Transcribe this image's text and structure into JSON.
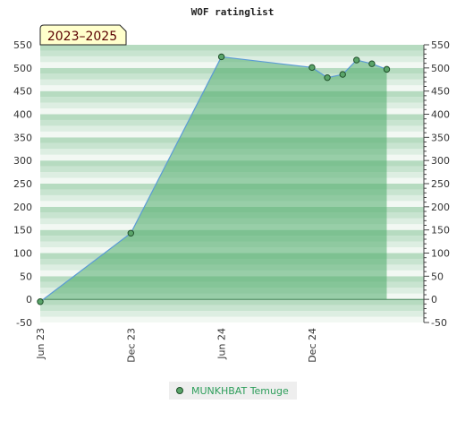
{
  "chart_data": {
    "type": "area",
    "title": "WOF ratinglist",
    "period_badge": "2023–2025",
    "xlabel": "",
    "ylabel": "",
    "ylim": [
      -50,
      550
    ],
    "y_ticks": [
      -50,
      0,
      50,
      100,
      150,
      200,
      250,
      300,
      350,
      400,
      450,
      500,
      550
    ],
    "y_tick_labels": [
      "-50",
      "0",
      "50",
      "100",
      "150",
      "200",
      "250",
      "300",
      "350",
      "400",
      "450",
      "500",
      "550"
    ],
    "right_axis_mirrored": true,
    "x_range": [
      "2023-06-01",
      "2025-07-15"
    ],
    "x_ticks": [
      {
        "date": "2023-06-01",
        "label": "Jun 23"
      },
      {
        "date": "2023-12-01",
        "label": "Dec 23"
      },
      {
        "date": "2024-06-01",
        "label": "Jun 24"
      },
      {
        "date": "2024-12-01",
        "label": "Dec 24"
      }
    ],
    "grid": true,
    "legend_position": "bottom-center",
    "series": [
      {
        "name": "MUNKHBAT Temuge",
        "color": "#5b9bd5",
        "fill_color": "#4fab6a",
        "marker_color": "#5aa469",
        "points": [
          {
            "x": "2023-06-01",
            "y": -5
          },
          {
            "x": "2023-12-01",
            "y": 143
          },
          {
            "x": "2024-06-01",
            "y": 524
          },
          {
            "x": "2024-12-01",
            "y": 501
          },
          {
            "x": "2025-01-01",
            "y": 479
          },
          {
            "x": "2025-02-01",
            "y": 486
          },
          {
            "x": "2025-03-01",
            "y": 517
          },
          {
            "x": "2025-04-01",
            "y": 509
          },
          {
            "x": "2025-05-01",
            "y": 497
          }
        ]
      }
    ]
  }
}
